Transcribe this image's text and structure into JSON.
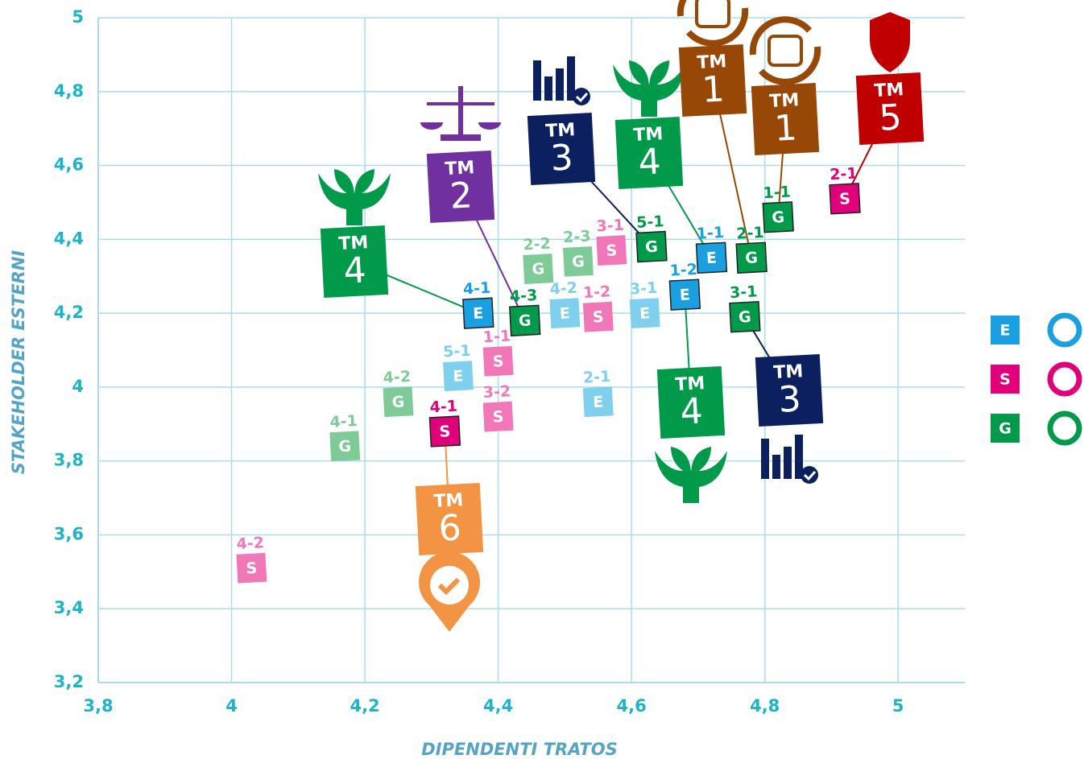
{
  "chart_data": {
    "type": "scatter",
    "x_label": "DIPENDENTI TRATOS",
    "y_label": "STAKEHOLDER ESTERNI",
    "xlim": [
      3.8,
      5.1
    ],
    "ylim": [
      3.2,
      5
    ],
    "xticks": [
      {
        "value": 3.8,
        "label": "3,8"
      },
      4,
      {
        "value": 4.2,
        "label": "4,2"
      },
      {
        "value": 4.4,
        "label": "4,4"
      },
      {
        "value": 4.6,
        "label": "4,6"
      },
      {
        "value": 4.8,
        "label": "4,8"
      },
      5
    ],
    "yticks": [
      {
        "value": 3.2,
        "label": "3,2"
      },
      {
        "value": 3.4,
        "label": "3,4"
      },
      {
        "value": 3.6,
        "label": "3,6"
      },
      {
        "value": 3.8,
        "label": "3,8"
      },
      4,
      {
        "value": 4.2,
        "label": "4,2"
      },
      {
        "value": 4.4,
        "label": "4,4"
      },
      {
        "value": 4.6,
        "label": "4,6"
      },
      {
        "value": 4.8,
        "label": "4,8"
      },
      5
    ],
    "grid": true,
    "legend": "right",
    "series": [
      {
        "name": "E",
        "color": "#1aa0e0",
        "labels": [
          "4-1",
          "1-2",
          "1-1",
          "5-1",
          "4-2",
          "3-1",
          "2-1"
        ],
        "x": [
          4.37,
          4.68,
          4.72,
          4.34,
          4.5,
          4.62,
          4.55
        ],
        "y": [
          4.2,
          4.25,
          4.35,
          4.03,
          4.2,
          4.2,
          3.96
        ],
        "point_colors": [
          "#1aa0e0",
          "#1aa0e0",
          "#1aa0e0",
          "#7fcfee",
          "#7fcfee",
          "#7fcfee",
          "#7fcfee"
        ],
        "callouts": [
          {
            "label": "TM",
            "number": "4",
            "color": "#009a4a"
          },
          {
            "label": "TM",
            "number": "4",
            "color": "#009a4a"
          },
          {
            "label": "TM",
            "number": "4",
            "color": "#009a4a"
          },
          null,
          null,
          null,
          null
        ]
      },
      {
        "name": "S",
        "color": "#e0007a",
        "labels": [
          "4-2",
          "4-1",
          "1-1",
          "3-2",
          "1-2",
          "3-1",
          "2-1"
        ],
        "x": [
          4.03,
          4.32,
          4.4,
          4.4,
          4.55,
          4.57,
          4.92
        ],
        "y": [
          3.51,
          3.88,
          4.07,
          3.92,
          4.19,
          4.37,
          4.51
        ],
        "point_colors": [
          "#f078b8",
          "#e0007a",
          "#f078b8",
          "#f078b8",
          "#f078b8",
          "#f078b8",
          "#e0007a"
        ],
        "callouts": [
          null,
          {
            "label": "TM",
            "number": "6",
            "color": "#f39444"
          },
          null,
          null,
          null,
          null,
          {
            "label": "TM",
            "number": "5",
            "color": "#c00000"
          }
        ]
      },
      {
        "name": "G",
        "color": "#009a4a",
        "labels": [
          "4-1",
          "4-2",
          "4-3",
          "2-2",
          "2-3",
          "5-1",
          "2-1",
          "3-1",
          "1-1"
        ],
        "x": [
          4.17,
          4.25,
          4.44,
          4.46,
          4.52,
          4.63,
          4.78,
          4.77,
          4.82
        ],
        "y": [
          3.84,
          3.96,
          4.18,
          4.32,
          4.34,
          4.38,
          4.35,
          4.19,
          4.46
        ],
        "point_colors": [
          "#7fcb98",
          "#7fcb98",
          "#009a4a",
          "#7fcb98",
          "#7fcb98",
          "#009a4a",
          "#009a4a",
          "#009a4a",
          "#009a4a"
        ],
        "callouts": [
          null,
          null,
          {
            "label": "TM",
            "number": "2",
            "color": "#7030a0"
          },
          null,
          null,
          {
            "label": "TM",
            "number": "3",
            "color": "#0c2060"
          },
          {
            "label": "TM",
            "number": "1",
            "color": "#984806"
          },
          {
            "label": "TM",
            "number": "3",
            "color": "#0c2060"
          },
          {
            "label": "TM",
            "number": "1",
            "color": "#984806"
          }
        ]
      }
    ]
  }
}
